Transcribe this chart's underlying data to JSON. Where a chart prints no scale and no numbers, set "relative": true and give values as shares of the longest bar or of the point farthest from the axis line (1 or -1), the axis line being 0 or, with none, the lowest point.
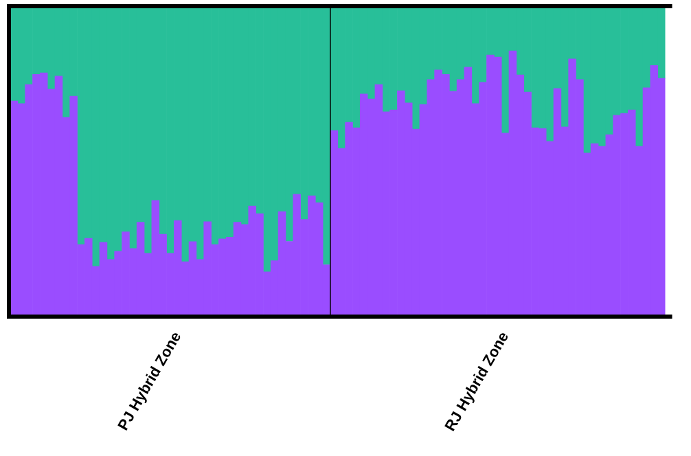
{
  "chart_data": {
    "type": "bar",
    "stacked": true,
    "relative": true,
    "categories": [
      null,
      null,
      null,
      null,
      null,
      null,
      null,
      null,
      null,
      null,
      null,
      null,
      null,
      null,
      null,
      null,
      null,
      null,
      null,
      null,
      null,
      null,
      "PJ Hybrid Zone",
      null,
      null,
      null,
      null,
      null,
      null,
      null,
      null,
      null,
      null,
      null,
      null,
      null,
      null,
      null,
      null,
      null,
      null,
      null,
      null,
      null,
      null,
      null,
      null,
      null,
      null,
      null,
      null,
      null,
      null,
      null,
      null,
      null,
      null,
      null,
      null,
      null,
      null,
      null,
      null,
      null,
      null,
      null,
      "RJ Hybrid Zone",
      null,
      null,
      null,
      null,
      null,
      null,
      null,
      null,
      null,
      null,
      null,
      null,
      null,
      null,
      null,
      null,
      null,
      null,
      null,
      null,
      null
    ],
    "series": [
      {
        "color": "#9a4dff",
        "values": [
          0.696,
          0.688,
          0.75,
          0.783,
          0.788,
          0.735,
          0.777,
          0.643,
          0.712,
          0.23,
          0.25,
          0.159,
          0.237,
          0.181,
          0.208,
          0.271,
          0.217,
          0.302,
          0.201,
          0.373,
          0.263,
          0.201,
          0.308,
          0.174,
          0.239,
          0.181,
          0.304,
          0.23,
          0.248,
          0.254,
          0.302,
          0.295,
          0.355,
          0.33,
          0.141,
          0.177,
          0.337,
          0.24,
          0.393,
          0.311,
          0.388,
          0.366,
          0.164,
          0.6,
          0.542,
          0.627,
          0.609,
          0.719,
          0.703,
          0.75,
          0.661,
          0.667,
          0.73,
          0.69,
          0.605,
          0.685,
          0.766,
          0.797,
          0.783,
          0.728,
          0.766,
          0.806,
          0.688,
          0.757,
          0.846,
          0.839,
          0.592,
          0.859,
          0.781,
          0.725,
          0.609,
          0.607,
          0.565,
          0.737,
          0.612,
          0.833,
          0.766,
          0.527,
          0.558,
          0.549,
          0.587,
          0.65,
          0.656,
          0.667,
          0.549,
          0.739,
          0.812,
          0.77
        ]
      },
      {
        "color": "#28bf99",
        "values": [
          0.304,
          0.312,
          0.25,
          0.217,
          0.212,
          0.265,
          0.223,
          0.357,
          0.288,
          0.77,
          0.75,
          0.841,
          0.763,
          0.819,
          0.792,
          0.729,
          0.783,
          0.698,
          0.799,
          0.627,
          0.737,
          0.799,
          0.692,
          0.826,
          0.761,
          0.819,
          0.696,
          0.77,
          0.752,
          0.746,
          0.698,
          0.705,
          0.645,
          0.67,
          0.859,
          0.823,
          0.663,
          0.76,
          0.607,
          0.689,
          0.612,
          0.634,
          0.836,
          0.4,
          0.458,
          0.373,
          0.391,
          0.281,
          0.297,
          0.25,
          0.339,
          0.333,
          0.27,
          0.31,
          0.395,
          0.315,
          0.234,
          0.203,
          0.217,
          0.272,
          0.234,
          0.194,
          0.312,
          0.243,
          0.154,
          0.161,
          0.408,
          0.141,
          0.219,
          0.275,
          0.391,
          0.393,
          0.435,
          0.263,
          0.388,
          0.167,
          0.234,
          0.473,
          0.442,
          0.451,
          0.413,
          0.35,
          0.344,
          0.333,
          0.451,
          0.261,
          0.188,
          0.23
        ]
      }
    ]
  }
}
